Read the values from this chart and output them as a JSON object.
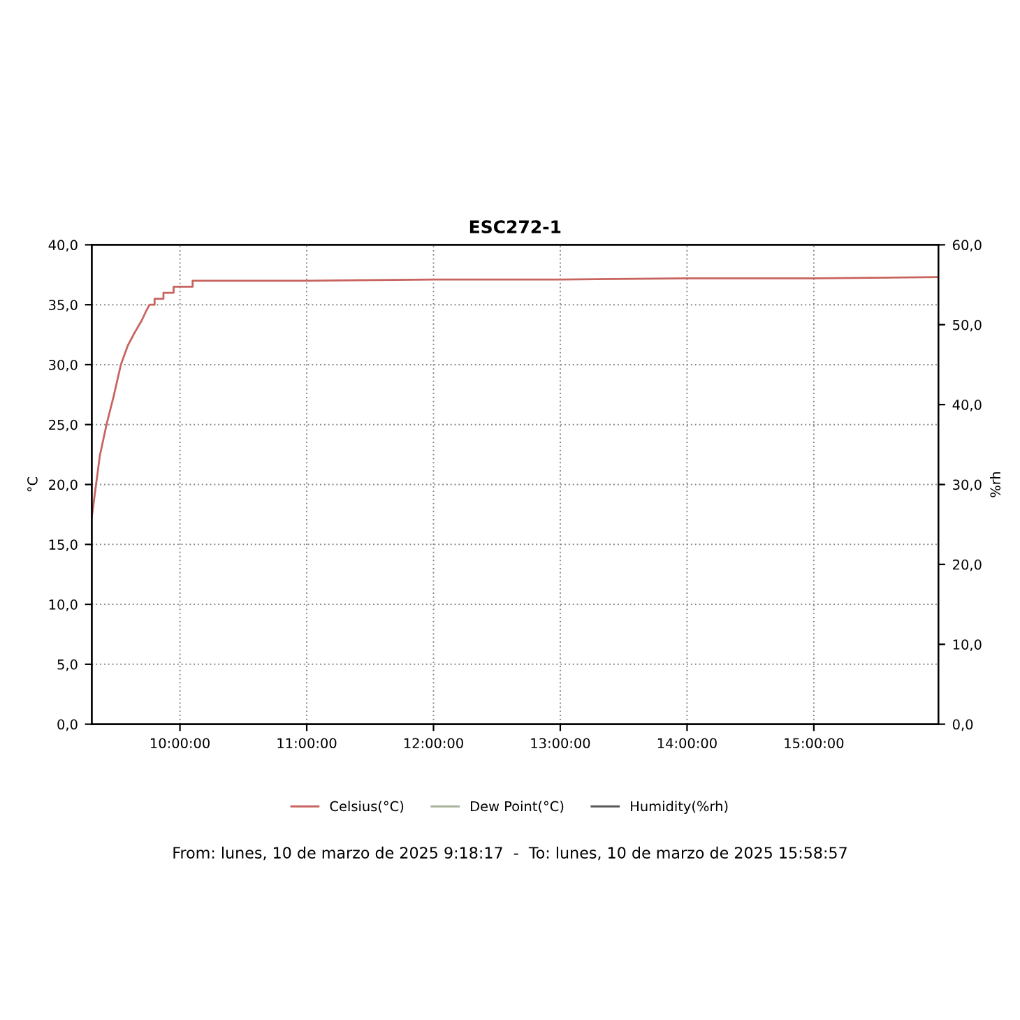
{
  "chart_data": {
    "type": "line",
    "title": "ESC272-1",
    "ylabel": "°C",
    "y2label": "%rh",
    "xlim": [
      9.3047,
      15.9825
    ],
    "xticks": [
      {
        "value": 10,
        "label": "10:00:00"
      },
      {
        "value": 11,
        "label": "11:00:00"
      },
      {
        "value": 12,
        "label": "12:00:00"
      },
      {
        "value": 13,
        "label": "13:00:00"
      },
      {
        "value": 14,
        "label": "14:00:00"
      },
      {
        "value": 15,
        "label": "15:00:00"
      }
    ],
    "ylim": [
      0,
      40
    ],
    "yticks": [
      {
        "value": 0,
        "label": "0,0"
      },
      {
        "value": 5,
        "label": "5,0"
      },
      {
        "value": 10,
        "label": "10,0"
      },
      {
        "value": 15,
        "label": "15,0"
      },
      {
        "value": 20,
        "label": "20,0"
      },
      {
        "value": 25,
        "label": "25,0"
      },
      {
        "value": 30,
        "label": "30,0"
      },
      {
        "value": 35,
        "label": "35,0"
      },
      {
        "value": 40,
        "label": "40,0"
      }
    ],
    "y2lim": [
      0,
      60
    ],
    "y2ticks": [
      {
        "value": 0,
        "label": "0,0"
      },
      {
        "value": 10,
        "label": "10,0"
      },
      {
        "value": 20,
        "label": "20,0"
      },
      {
        "value": 30,
        "label": "30,0"
      },
      {
        "value": 40,
        "label": "40,0"
      },
      {
        "value": 50,
        "label": "50,0"
      },
      {
        "value": 60,
        "label": "60,0"
      }
    ],
    "grid": true,
    "legend": "bottom",
    "series": [
      {
        "name": "Celsius(°C)",
        "color": "#c8645f",
        "x": [
          9.3047,
          9.368,
          9.423,
          9.478,
          9.534,
          9.589,
          9.644,
          9.699,
          9.73,
          9.76,
          9.8,
          9.8,
          9.87,
          9.87,
          9.95,
          9.95,
          10.1,
          10.1,
          11.0,
          12.0,
          13.0,
          14.0,
          15.0,
          15.9825
        ],
        "values": [
          17.3,
          22.4,
          25.1,
          27.4,
          30.0,
          31.6,
          32.7,
          33.7,
          34.4,
          35.0,
          35.0,
          35.5,
          35.5,
          36.0,
          36.0,
          36.5,
          36.5,
          37.0,
          37.0,
          37.1,
          37.1,
          37.2,
          37.2,
          37.3
        ]
      },
      {
        "name": "Dew Point(°C)",
        "color": "#a9b39c"
      },
      {
        "name": "Humidity(%rh)",
        "color": "#5a5a5a"
      }
    ],
    "annotations": [
      "From: lunes, 10 de marzo de 2025 9:18:17  -  To: lunes, 10 de marzo de 2025 15:58:57"
    ]
  }
}
